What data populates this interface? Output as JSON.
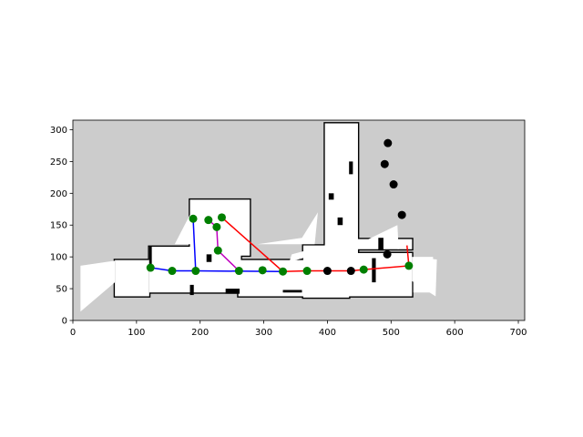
{
  "chart_data": {
    "type": "scatter",
    "title": "",
    "xlabel": "",
    "ylabel": "",
    "xlim": [
      0,
      710
    ],
    "ylim": [
      0,
      315
    ],
    "xticks": [
      0,
      100,
      200,
      300,
      400,
      500,
      600,
      700
    ],
    "yticks": [
      0,
      50,
      100,
      150,
      200,
      250,
      300
    ],
    "grid": false,
    "legend": "none",
    "map_colors": {
      "unknown": "#cccccc",
      "free": "#ffffff",
      "occupied": "#000000"
    },
    "paths": [
      {
        "color": "#0000ff",
        "points": [
          [
            122,
            83
          ],
          [
            156,
            78
          ],
          [
            193,
            78
          ],
          [
            330,
            77
          ]
        ]
      },
      {
        "color": "#0000ff",
        "points": [
          [
            189,
            160
          ],
          [
            193,
            78
          ]
        ]
      },
      {
        "color": "#bf00bf",
        "points": [
          [
            213,
            158
          ],
          [
            226,
            147
          ],
          [
            228,
            110
          ],
          [
            261,
            78
          ]
        ]
      },
      {
        "color": "#ff0000",
        "points": [
          [
            234,
            162
          ],
          [
            330,
            77
          ],
          [
            368,
            78
          ],
          [
            400,
            78
          ],
          [
            437,
            78
          ],
          [
            457,
            80
          ],
          [
            528,
            86
          ],
          [
            525,
            118
          ]
        ]
      }
    ],
    "green_points": [
      [
        122,
        83
      ],
      [
        156,
        78
      ],
      [
        193,
        78
      ],
      [
        189,
        160
      ],
      [
        213,
        158
      ],
      [
        226,
        147
      ],
      [
        234,
        162
      ],
      [
        228,
        110
      ],
      [
        261,
        78
      ],
      [
        298,
        79
      ],
      [
        330,
        77
      ],
      [
        368,
        78
      ],
      [
        457,
        80
      ],
      [
        528,
        86
      ]
    ],
    "black_points": [
      [
        400,
        78
      ],
      [
        437,
        78
      ],
      [
        495,
        279
      ],
      [
        490,
        246
      ],
      [
        504,
        214
      ],
      [
        517,
        166
      ],
      [
        494,
        104
      ]
    ],
    "marker_colors": {
      "visited": "#007f00",
      "other": "#000000"
    }
  }
}
